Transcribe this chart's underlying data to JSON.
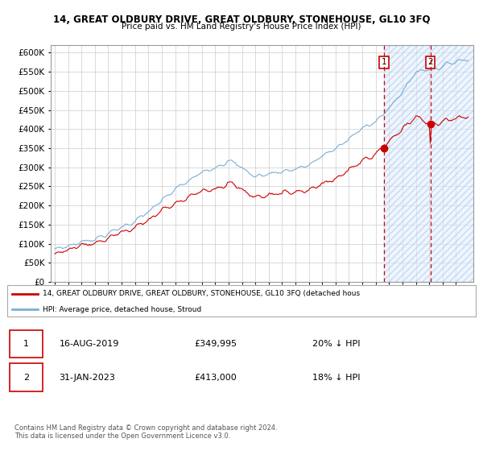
{
  "title1": "14, GREAT OLDBURY DRIVE, GREAT OLDBURY, STONEHOUSE, GL10 3FQ",
  "title2": "Price paid vs. HM Land Registry's House Price Index (HPI)",
  "ytick_values": [
    0,
    50000,
    100000,
    150000,
    200000,
    250000,
    300000,
    350000,
    400000,
    450000,
    500000,
    550000,
    600000
  ],
  "x_start_year": 1995,
  "x_end_year": 2025,
  "purchase1_year": 2019,
  "purchase1_month": 8,
  "purchase1_date": 2019.62,
  "purchase1_price": 349995,
  "purchase2_year": 2023,
  "purchase2_month": 1,
  "purchase2_date": 2023.08,
  "purchase2_price": 413000,
  "legend_red": "14, GREAT OLDBURY DRIVE, GREAT OLDBURY, STONEHOUSE, GL10 3FQ (detached hous",
  "legend_blue": "HPI: Average price, detached house, Stroud",
  "table_row1": [
    "1",
    "16-AUG-2019",
    "£349,995",
    "20% ↓ HPI"
  ],
  "table_row2": [
    "2",
    "31-JAN-2023",
    "£413,000",
    "18% ↓ HPI"
  ],
  "footer": "Contains HM Land Registry data © Crown copyright and database right 2024.\nThis data is licensed under the Open Government Licence v3.0.",
  "hpi_color": "#7bafd4",
  "price_color": "#cc0000",
  "dashed_color": "#cc0000",
  "grid_color": "#cccccc",
  "hatch_bg": "#ddeeff",
  "hatch_pattern": "////",
  "hatch_color": "#aabbdd"
}
